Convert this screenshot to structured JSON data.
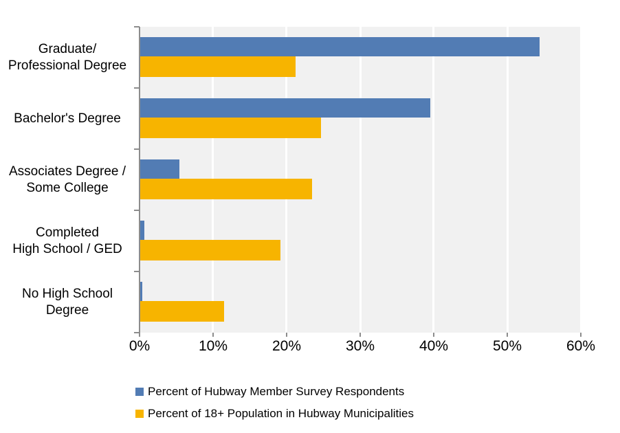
{
  "chart_data": {
    "type": "bar",
    "orientation": "horizontal",
    "title": "",
    "categories": [
      {
        "lines": [
          "Graduate/",
          "Professional Degree"
        ]
      },
      {
        "lines": [
          "Bachelor's Degree"
        ]
      },
      {
        "lines": [
          "Associates Degree /",
          "Some College"
        ]
      },
      {
        "lines": [
          "Completed",
          "High School / GED"
        ]
      },
      {
        "lines": [
          "No High School",
          "Degree"
        ]
      }
    ],
    "series": [
      {
        "name": "Percent of Hubway Member Survey Respondents",
        "color": "#527CB4",
        "values": [
          54.4,
          39.5,
          5.4,
          0.7,
          0.4
        ]
      },
      {
        "name": "Percent of 18+ Population in Hubway Municipalities",
        "color": "#F7B400",
        "values": [
          21.2,
          24.7,
          23.5,
          19.2,
          11.5
        ]
      }
    ],
    "x_axis": {
      "min": 0,
      "max": 60,
      "tick_step": 10,
      "tick_labels": [
        "0%",
        "10%",
        "20%",
        "30%",
        "40%",
        "50%",
        "60%"
      ]
    },
    "legend_position": "bottom-left",
    "grid": "on",
    "styles": {
      "plot_bg": "#F1F1F1",
      "gridline_color": "#FFFFFF",
      "axis_color": "#8C8C8C",
      "text_color": "#000000"
    }
  }
}
